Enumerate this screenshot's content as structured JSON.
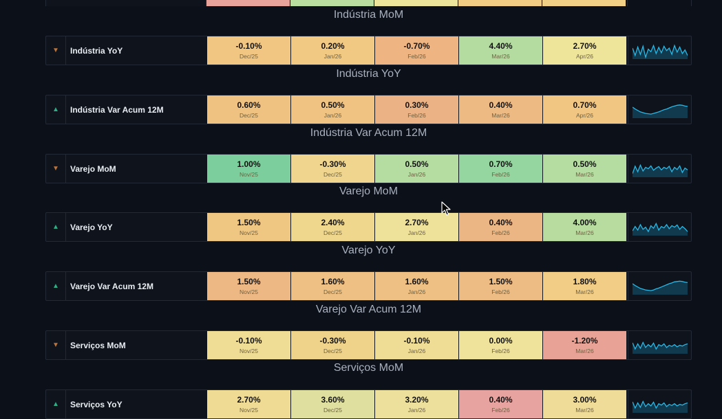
{
  "top_strip_colors": [
    "#e9a39a",
    "#b9dea0",
    "#ede49b",
    "#f1cc82",
    "#f2d187"
  ],
  "rows": [
    {
      "caption": "Indústria MoM"
    },
    {
      "name": "Indústria YoY",
      "trend": "down",
      "arrow_icon": "triangle-down-icon",
      "caption": "Indústria YoY",
      "cells": [
        {
          "value": "-0.10%",
          "date": "Dec/25",
          "color": "#f1c683"
        },
        {
          "value": "0.20%",
          "date": "Jan/26",
          "color": "#f2c983"
        },
        {
          "value": "-0.70%",
          "date": "Feb/26",
          "color": "#eeb583"
        },
        {
          "value": "4.40%",
          "date": "Mar/26",
          "color": "#b4dca0"
        },
        {
          "value": "2.70%",
          "date": "Apr/26",
          "color": "#eee59b"
        }
      ],
      "spark": [
        55,
        35,
        58,
        38,
        60,
        30,
        52,
        45,
        62,
        40,
        57,
        42,
        60,
        48,
        55,
        38,
        62,
        44,
        58,
        40,
        50,
        35
      ]
    },
    {
      "name": "Indústria Var Acum 12M",
      "trend": "up",
      "arrow_icon": "triangle-up-icon",
      "caption": "Indústria Var Acum 12M",
      "cells": [
        {
          "value": "0.60%",
          "date": "Dec/25",
          "color": "#efc282"
        },
        {
          "value": "0.50%",
          "date": "Jan/26",
          "color": "#f0c383"
        },
        {
          "value": "0.30%",
          "date": "Feb/26",
          "color": "#ebb385"
        },
        {
          "value": "0.40%",
          "date": "Mar/26",
          "color": "#eeba84"
        },
        {
          "value": "0.70%",
          "date": "Apr/26",
          "color": "#f1c682"
        }
      ],
      "spark": [
        55,
        50,
        46,
        42,
        40,
        38,
        37,
        36,
        38,
        40,
        42,
        45,
        48,
        50,
        53,
        56,
        58,
        60,
        61,
        60,
        58,
        57
      ]
    },
    {
      "name": "Varejo MoM",
      "trend": "down",
      "arrow_icon": "triangle-down-icon",
      "caption": "Varejo MoM",
      "cells": [
        {
          "value": "1.00%",
          "date": "Nov/25",
          "color": "#7ccf9c"
        },
        {
          "value": "-0.30%",
          "date": "Dec/25",
          "color": "#efd58e"
        },
        {
          "value": "0.50%",
          "date": "Jan/26",
          "color": "#b5dca1"
        },
        {
          "value": "0.70%",
          "date": "Feb/26",
          "color": "#95d59f"
        },
        {
          "value": "0.50%",
          "date": "Mar/26",
          "color": "#b5dca1"
        }
      ],
      "spark": [
        35,
        55,
        40,
        58,
        42,
        52,
        48,
        56,
        44,
        50,
        54,
        45,
        52,
        48,
        55,
        40,
        52,
        46,
        56,
        38,
        50,
        45
      ]
    },
    {
      "name": "Varejo YoY",
      "trend": "up",
      "arrow_icon": "triangle-up-icon",
      "caption": "Varejo YoY",
      "cells": [
        {
          "value": "1.50%",
          "date": "Nov/25",
          "color": "#f0c683"
        },
        {
          "value": "2.40%",
          "date": "Dec/25",
          "color": "#efd88e"
        },
        {
          "value": "2.70%",
          "date": "Jan/26",
          "color": "#eee19a"
        },
        {
          "value": "0.40%",
          "date": "Feb/26",
          "color": "#ecb584"
        },
        {
          "value": "4.00%",
          "date": "Mar/26",
          "color": "#b8dc9f"
        }
      ],
      "spark": [
        38,
        50,
        40,
        55,
        42,
        48,
        36,
        52,
        45,
        58,
        40,
        50,
        46,
        55,
        44,
        52,
        48,
        54,
        42,
        50,
        44,
        36
      ]
    },
    {
      "name": "Varejo Var Acum 12M",
      "trend": "up",
      "arrow_icon": "triangle-up-icon",
      "caption": "Varejo Var Acum 12M",
      "cells": [
        {
          "value": "1.50%",
          "date": "Nov/25",
          "color": "#edb884"
        },
        {
          "value": "1.60%",
          "date": "Dec/25",
          "color": "#efc083"
        },
        {
          "value": "1.60%",
          "date": "Jan/26",
          "color": "#efc083"
        },
        {
          "value": "1.50%",
          "date": "Feb/26",
          "color": "#edbb84"
        },
        {
          "value": "1.80%",
          "date": "Mar/26",
          "color": "#f2cd85"
        }
      ],
      "spark": [
        55,
        50,
        46,
        42,
        40,
        38,
        37,
        36,
        38,
        41,
        43,
        46,
        49,
        52,
        55,
        57,
        60,
        61,
        62,
        61,
        59,
        58
      ]
    },
    {
      "name": "Serviços MoM",
      "trend": "down",
      "arrow_icon": "triangle-down-icon",
      "caption": "Serviços MoM",
      "cells": [
        {
          "value": "-0.10%",
          "date": "Nov/25",
          "color": "#f0dd95"
        },
        {
          "value": "-0.30%",
          "date": "Dec/25",
          "color": "#efd38b"
        },
        {
          "value": "-0.10%",
          "date": "Jan/26",
          "color": "#f0dd95"
        },
        {
          "value": "0.00%",
          "date": "Feb/26",
          "color": "#efe39c"
        },
        {
          "value": "-1.20%",
          "date": "Mar/26",
          "color": "#e8a396"
        }
      ],
      "spark": [
        55,
        38,
        52,
        40,
        56,
        42,
        50,
        44,
        54,
        38,
        50,
        46,
        52,
        42,
        48,
        45,
        50,
        44,
        48,
        46,
        50,
        52
      ]
    },
    {
      "name": "Serviços YoY",
      "trend": "up",
      "arrow_icon": "triangle-up-icon",
      "cells": [
        {
          "value": "2.70%",
          "date": "Nov/25",
          "color": "#efdb94"
        },
        {
          "value": "3.60%",
          "date": "Dec/25",
          "color": "#dfe09f"
        },
        {
          "value": "3.20%",
          "date": "Jan/26",
          "color": "#ede09c"
        },
        {
          "value": "0.40%",
          "date": "Feb/26",
          "color": "#e6a3a0"
        },
        {
          "value": "3.00%",
          "date": "Mar/26",
          "color": "#efdc98"
        }
      ],
      "spark": [
        55,
        38,
        52,
        40,
        56,
        42,
        50,
        44,
        54,
        38,
        50,
        46,
        52,
        42,
        48,
        45,
        50,
        44,
        48,
        46,
        50,
        52
      ]
    }
  ],
  "colors": {
    "background": "#0c1018",
    "sparkline_stroke": "#29b8e6",
    "sparkline_fill": "#113a4e"
  }
}
